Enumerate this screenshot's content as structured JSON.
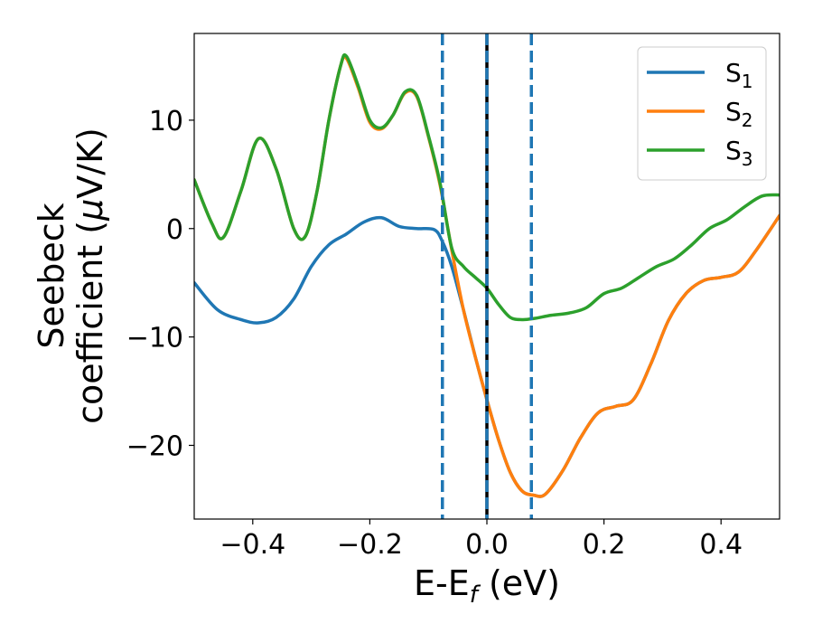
{
  "chart_data": {
    "type": "line",
    "xlabel": "E-E",
    "xlabel_sub": "f",
    "xlabel_unit": " (eV)",
    "ylabel_line1": "Seebeck",
    "ylabel_line2_pre": "coefficient  (",
    "ylabel_mu": "μ",
    "ylabel_line2_post": "V/K)",
    "xlim": [
      -0.5,
      0.5
    ],
    "ylim": [
      -26.8,
      18.0
    ],
    "xticks": [
      -0.4,
      -0.2,
      0.0,
      0.2,
      0.4
    ],
    "xtick_labels": [
      "−0.4",
      "−0.2",
      "0.0",
      "0.2",
      "0.4"
    ],
    "yticks": [
      -20,
      -10,
      0,
      10
    ],
    "ytick_labels": [
      "−20",
      "−10",
      "0",
      "10"
    ],
    "grid": false,
    "legend_placement": "top-right",
    "vertical_lines": [
      {
        "x": -0.076,
        "style": "dashed",
        "color": "#1f77b4"
      },
      {
        "x": 0.0,
        "style": "solid",
        "color": "#000000"
      },
      {
        "x": 0.0,
        "style": "dashed",
        "color": "#1f77b4"
      },
      {
        "x": 0.076,
        "style": "dashed",
        "color": "#1f77b4"
      }
    ],
    "series": [
      {
        "name": "S",
        "sub": "1",
        "color": "#1f77b4",
        "x": [
          -0.5,
          -0.46,
          -0.42,
          -0.39,
          -0.36,
          -0.33,
          -0.3,
          -0.27,
          -0.24,
          -0.21,
          -0.18,
          -0.15,
          -0.12,
          -0.09,
          -0.076,
          -0.06,
          -0.04,
          -0.02,
          0.0,
          0.02,
          0.04,
          0.06,
          0.08,
          0.1,
          0.13,
          0.16,
          0.19,
          0.22,
          0.25,
          0.28,
          0.31,
          0.34,
          0.37,
          0.4,
          0.43,
          0.46,
          0.5
        ],
        "y": [
          -5.0,
          -7.5,
          -8.4,
          -8.7,
          -8.2,
          -6.5,
          -3.5,
          -1.5,
          -0.5,
          0.6,
          1.0,
          0.2,
          0.0,
          -0.1,
          -1.2,
          -3.5,
          -7.5,
          -11.8,
          -15.8,
          -19.5,
          -22.5,
          -24.2,
          -24.6,
          -24.5,
          -22.3,
          -19.3,
          -17.0,
          -16.4,
          -15.8,
          -12.5,
          -8.5,
          -6.0,
          -4.8,
          -4.5,
          -4.0,
          -2.0,
          1.2
        ]
      },
      {
        "name": "S",
        "sub": "2",
        "color": "#ff7f0e",
        "x": [
          -0.5,
          -0.47,
          -0.45,
          -0.42,
          -0.39,
          -0.36,
          -0.33,
          -0.31,
          -0.29,
          -0.27,
          -0.25,
          -0.24,
          -0.22,
          -0.2,
          -0.18,
          -0.16,
          -0.14,
          -0.12,
          -0.1,
          -0.08,
          -0.06,
          -0.04,
          -0.02,
          0.0,
          0.02,
          0.04,
          0.06,
          0.08,
          0.1,
          0.13,
          0.16,
          0.19,
          0.22,
          0.25,
          0.28,
          0.31,
          0.34,
          0.37,
          0.4,
          0.43,
          0.46,
          0.5
        ],
        "y": [
          4.5,
          0.5,
          -0.8,
          3.5,
          8.3,
          5.5,
          0.0,
          -0.7,
          3.5,
          10.0,
          15.0,
          15.7,
          13.0,
          9.8,
          9.2,
          10.5,
          12.5,
          12.2,
          8.5,
          4.0,
          -2.0,
          -7.5,
          -11.8,
          -15.8,
          -19.5,
          -22.5,
          -24.2,
          -24.6,
          -24.5,
          -22.3,
          -19.3,
          -17.0,
          -16.4,
          -15.8,
          -12.5,
          -8.5,
          -6.0,
          -4.8,
          -4.5,
          -4.0,
          -2.0,
          1.2
        ]
      },
      {
        "name": "S",
        "sub": "3",
        "color": "#2ca02c",
        "x": [
          -0.5,
          -0.47,
          -0.45,
          -0.42,
          -0.39,
          -0.36,
          -0.33,
          -0.31,
          -0.29,
          -0.27,
          -0.25,
          -0.24,
          -0.22,
          -0.2,
          -0.18,
          -0.16,
          -0.14,
          -0.12,
          -0.1,
          -0.08,
          -0.06,
          -0.04,
          -0.02,
          0.0,
          0.02,
          0.04,
          0.06,
          0.08,
          0.11,
          0.14,
          0.17,
          0.2,
          0.23,
          0.26,
          0.29,
          0.32,
          0.35,
          0.38,
          0.41,
          0.44,
          0.47,
          0.5
        ],
        "y": [
          4.5,
          0.5,
          -0.8,
          3.5,
          8.3,
          5.5,
          0.0,
          -0.7,
          3.5,
          10.0,
          15.0,
          15.9,
          13.2,
          10.0,
          9.3,
          10.5,
          12.6,
          12.3,
          8.6,
          4.2,
          -1.8,
          -3.5,
          -4.5,
          -5.5,
          -7.0,
          -8.2,
          -8.4,
          -8.3,
          -8.0,
          -7.8,
          -7.3,
          -6.0,
          -5.5,
          -4.5,
          -3.5,
          -2.8,
          -1.5,
          0.0,
          0.8,
          2.0,
          3.0,
          3.1
        ]
      }
    ]
  }
}
